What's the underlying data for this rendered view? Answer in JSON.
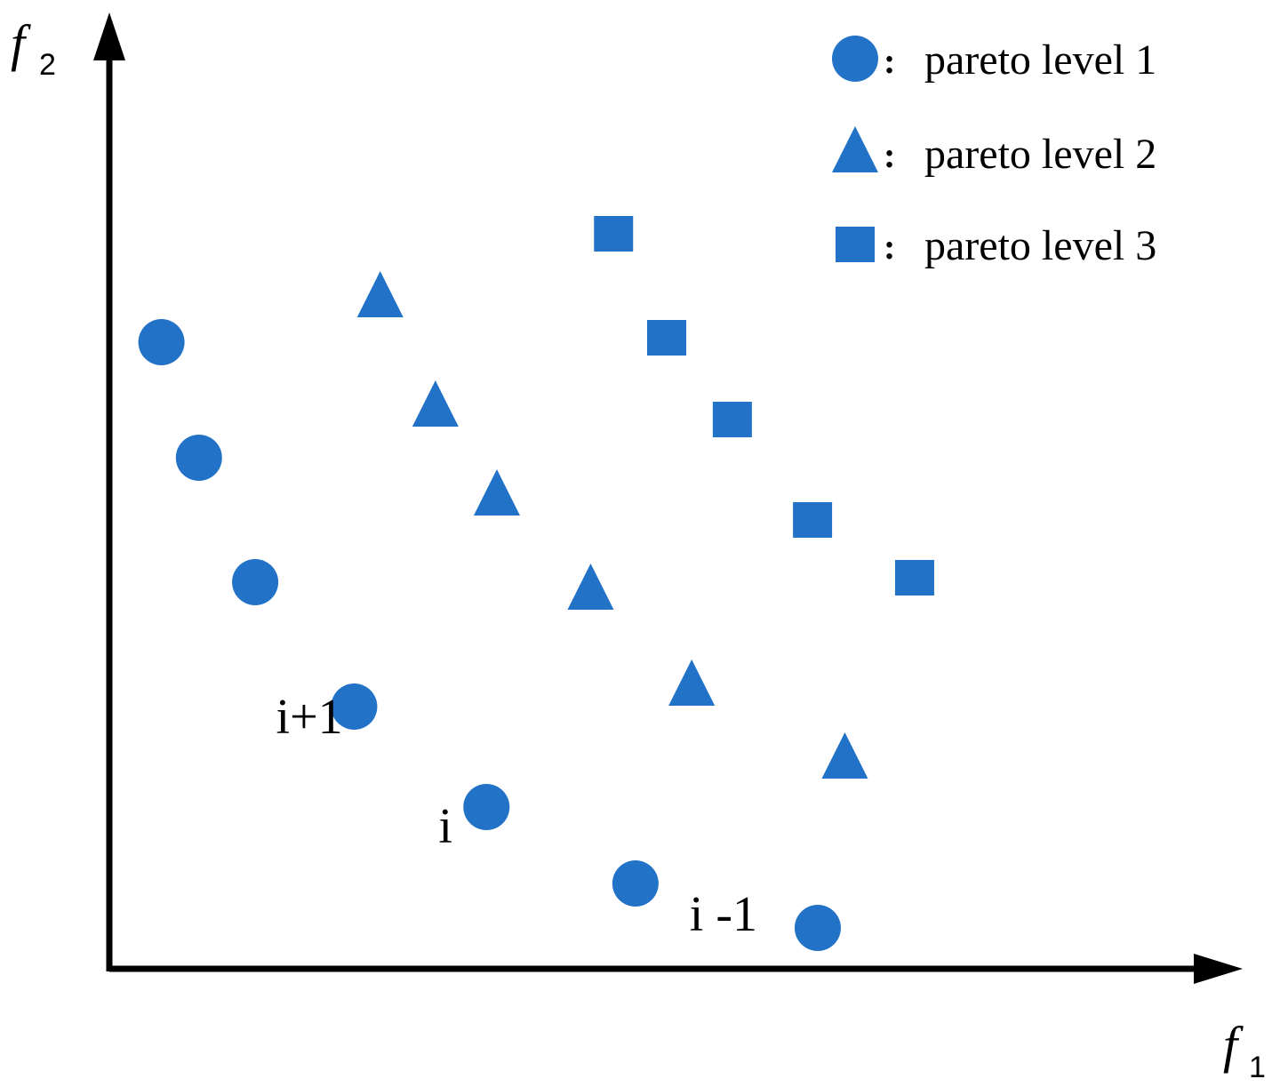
{
  "chart_data": {
    "type": "scatter",
    "title": "",
    "xlabel": "f",
    "xlabel_sub": "1",
    "ylabel": "f",
    "ylabel_sub": "2",
    "xlim": [
      0,
      100
    ],
    "ylim": [
      0,
      100
    ],
    "grid": false,
    "legend_position": "top-right",
    "marker_color": "#2272C8",
    "series": [
      {
        "name": "pareto level 1",
        "marker": "circle",
        "x": [
          5,
          8.6,
          14,
          23.5,
          36.2,
          50.5,
          68
        ],
        "y": [
          70.5,
          57.5,
          43.5,
          29.5,
          18.2,
          9.6,
          4.6
        ]
      },
      {
        "name": "pareto level 2",
        "marker": "triangle",
        "x": [
          26,
          31.3,
          37.2,
          46.2,
          55.9,
          70.6
        ],
        "y": [
          75.5,
          63.2,
          53.2,
          42.6,
          31.8,
          23.6
        ]
      },
      {
        "name": "pareto level 3",
        "marker": "square",
        "x": [
          48.4,
          53.5,
          59.8,
          67.5,
          77.3
        ],
        "y": [
          82.7,
          71,
          61.8,
          50.5,
          44
        ]
      }
    ],
    "annotations": [
      {
        "text": "i+1",
        "x": 16,
        "y": 26.5
      },
      {
        "text": "i",
        "x": 31.6,
        "y": 14.2
      },
      {
        "text": "i -1",
        "x": 55.7,
        "y": 4.3
      }
    ],
    "legend_separator": ":"
  }
}
